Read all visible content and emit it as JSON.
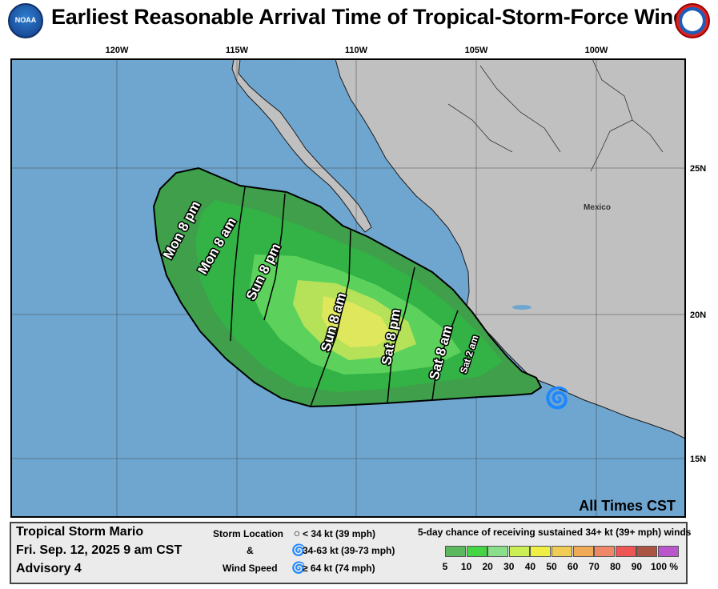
{
  "header": {
    "title": "Earliest Reasonable Arrival Time of Tropical-Storm-Force Winds",
    "noaa_logo_text": "NOAA",
    "nws_logo_text": "NATIONAL WEATHER SERVICE"
  },
  "map": {
    "lon_labels": [
      "120W",
      "115W",
      "110W",
      "105W",
      "100W"
    ],
    "lat_labels": [
      "25N",
      "20N",
      "15N"
    ],
    "place_label": "Mexico",
    "times_note": "All Times CST",
    "arrival_lines": [
      "Mon 8 pm",
      "Mon 8 am",
      "Sun 8 pm",
      "Sun 8 am",
      "Sat 8 pm",
      "Sat 8 am",
      "Sat 2 am"
    ],
    "colors": {
      "ocean": "#6fa6d0",
      "land": "#c0c0c0",
      "coast": "#1a1a1a"
    }
  },
  "legend": {
    "storm_name": "Tropical Storm Mario",
    "issued": "Fri. Sep. 12, 2025  9 am CST",
    "advisory": "Advisory 4",
    "storm_location_label": "Storm Location",
    "amp": "&",
    "wind_speed_label": "Wind Speed",
    "wind_items": [
      "< 34 kt (39 mph)",
      "34-63 kt (39-73 mph)",
      "≥ 64 kt (74 mph)"
    ],
    "prob_title": "5-day chance of receiving sustained 34+ kt (39+ mph) winds",
    "prob_ticks": [
      "5",
      "10",
      "20",
      "30",
      "40",
      "50",
      "60",
      "70",
      "80",
      "90",
      "100 %"
    ],
    "prob_colors": [
      "#5cb85c",
      "#44d444",
      "#8ae08a",
      "#ccee55",
      "#eeee44",
      "#f0cc55",
      "#f0aa55",
      "#ee8866",
      "#ee5555",
      "#aa5544",
      "#bb55cc"
    ]
  }
}
